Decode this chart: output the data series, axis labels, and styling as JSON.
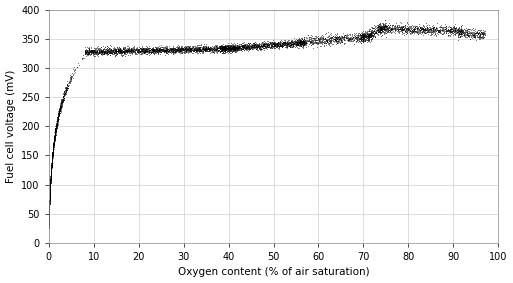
{
  "title": "",
  "xlabel": "Oxygen content (% of air saturation)",
  "ylabel": "Fuel cell voltage (mV)",
  "xlim": [
    0,
    100
  ],
  "ylim": [
    0,
    400
  ],
  "xticks": [
    0,
    10,
    20,
    30,
    40,
    50,
    60,
    70,
    80,
    90,
    100
  ],
  "yticks": [
    0,
    50,
    100,
    150,
    200,
    250,
    300,
    350,
    400
  ],
  "marker_color": "black",
  "marker_size": 0.8,
  "background_color": "#ffffff",
  "grid_color": "#d0d0d0"
}
